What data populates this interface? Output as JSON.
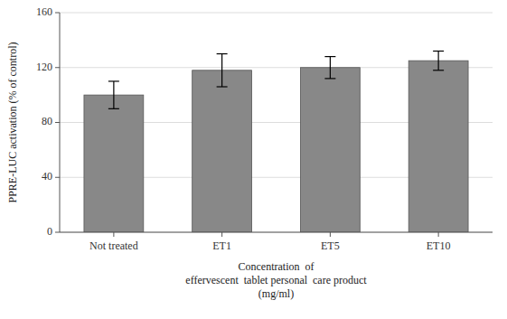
{
  "chart_data": {
    "type": "bar",
    "categories": [
      "Not treated",
      "ET1",
      "ET5",
      "ET10"
    ],
    "values": [
      100,
      118,
      120,
      125
    ],
    "errors": [
      10,
      12,
      8,
      7
    ],
    "color": "#888888",
    "ylim": [
      0,
      160
    ],
    "yticks": [
      0,
      40,
      80,
      120,
      160
    ],
    "ylabel": "PPRE-LUC activation (% of control)",
    "xlabel": "Concentration  of\neffervescent  tablet personal  care product\n(mg/ml)",
    "grid": true
  }
}
